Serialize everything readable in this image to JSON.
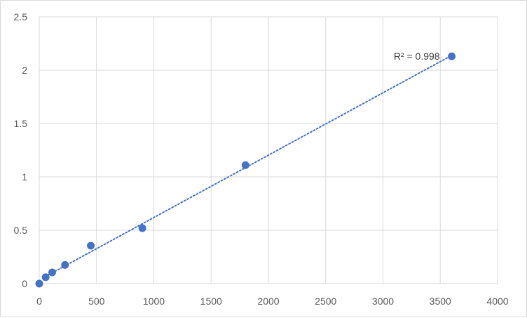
{
  "chart_data": {
    "type": "scatter",
    "title": "",
    "xlabel": "",
    "ylabel": "",
    "xlim": [
      0,
      4000
    ],
    "ylim": [
      0,
      2.5
    ],
    "x_ticks": [
      0,
      500,
      1000,
      1500,
      2000,
      2500,
      3000,
      3500,
      4000
    ],
    "y_ticks": [
      0,
      0.5,
      1,
      1.5,
      2,
      2.5
    ],
    "x_tick_labels": [
      "0",
      "500",
      "1000",
      "1500",
      "2000",
      "2500",
      "3000",
      "3500",
      "4000"
    ],
    "y_tick_labels": [
      "0",
      "0.5",
      "1",
      "1.5",
      "2",
      "2.5"
    ],
    "grid": true,
    "series": [
      {
        "x": [
          0,
          56,
          113,
          225,
          450,
          900,
          1800,
          3600
        ],
        "y": [
          0.0,
          0.06,
          0.105,
          0.175,
          0.355,
          0.52,
          1.11,
          2.13
        ],
        "color": "#4472c4"
      }
    ],
    "trendline": {
      "type": "linear",
      "color": "#4472c4",
      "style": "dotted",
      "x_range": [
        56,
        3600
      ],
      "label": "R² = 0.998"
    }
  }
}
